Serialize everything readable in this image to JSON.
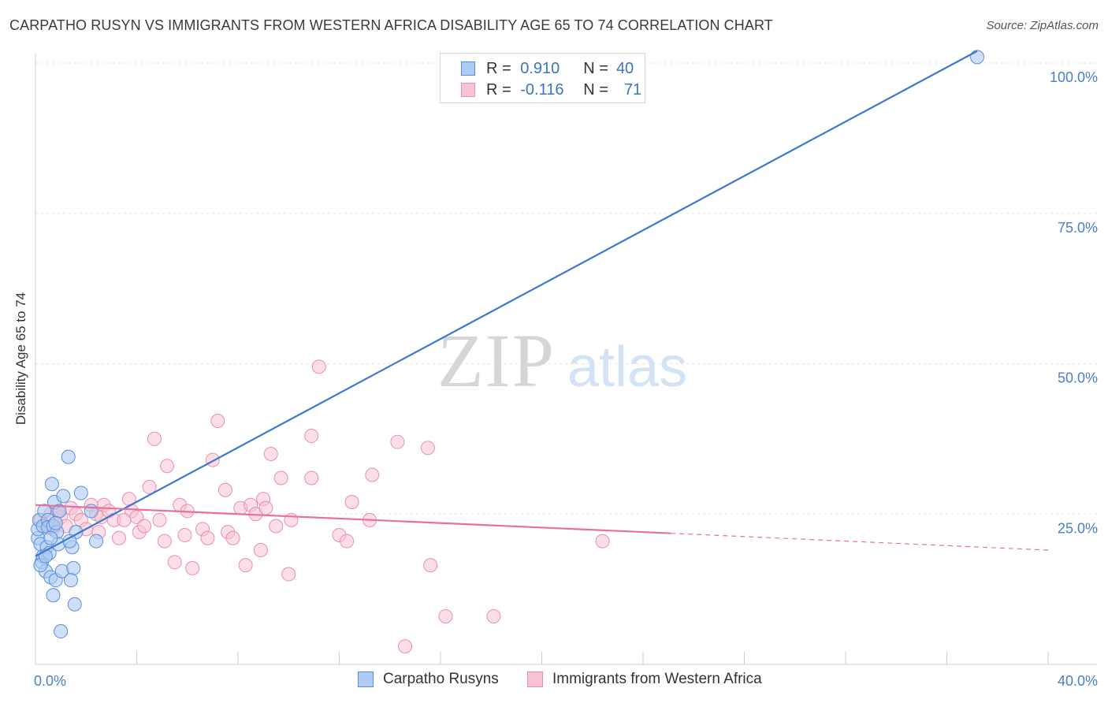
{
  "title": "CARPATHO RUSYN VS IMMIGRANTS FROM WESTERN AFRICA DISABILITY AGE 65 TO 74 CORRELATION CHART",
  "source": "Source: ZipAtlas.com",
  "watermark": {
    "zip": "ZIP",
    "atlas": "atlas"
  },
  "legend": {
    "row1": {
      "r_label": "R =",
      "r_value": "0.910",
      "n_label": "N =",
      "n_value": "40"
    },
    "row2": {
      "r_label": "R =",
      "r_value": "-0.116",
      "n_label": "N =",
      "n_value": "71"
    }
  },
  "colors": {
    "blue_fill": "#aecbf2",
    "blue_stroke": "#5b8ed8",
    "blue_line": "#3b78d0",
    "pink_fill": "#f7c3d3",
    "pink_stroke": "#e890ac",
    "pink_line": "#e8709a",
    "axis_text": "#4a7ec8",
    "grid": "#e2e2e2"
  },
  "chart_data": {
    "type": "scatter",
    "title": "CARPATHO RUSYN VS IMMIGRANTS FROM WESTERN AFRICA DISABILITY AGE 65 TO 74 CORRELATION CHART",
    "xlabel": "",
    "ylabel": "Disability Age 65 to 74",
    "xlim": [
      0,
      40
    ],
    "ylim": [
      0,
      100
    ],
    "x_tick_labels": [
      "0.0%",
      "40.0%"
    ],
    "y_tick_labels": [
      "25.0%",
      "50.0%",
      "75.0%",
      "100.0%"
    ],
    "y_ticks": [
      25,
      50,
      75,
      100
    ],
    "grid": true,
    "legend_placement": "top-center",
    "series": [
      {
        "name": "Carpatho Rusyns",
        "color": "#aecbf2",
        "R": 0.91,
        "N": 40,
        "trend": {
          "x": [
            0.0,
            37.2
          ],
          "y": [
            18.0,
            102.0
          ]
        },
        "points": [
          [
            0.1,
            21.0
          ],
          [
            0.1,
            22.5
          ],
          [
            0.15,
            24.0
          ],
          [
            0.2,
            20.0
          ],
          [
            0.25,
            17.0
          ],
          [
            0.3,
            18.0
          ],
          [
            0.3,
            23.0
          ],
          [
            0.35,
            25.5
          ],
          [
            0.4,
            15.5
          ],
          [
            0.45,
            19.5
          ],
          [
            0.5,
            24.0
          ],
          [
            0.5,
            22.8
          ],
          [
            0.55,
            18.5
          ],
          [
            0.6,
            14.5
          ],
          [
            0.65,
            30.0
          ],
          [
            0.7,
            11.5
          ],
          [
            0.7,
            23.0
          ],
          [
            0.75,
            27.0
          ],
          [
            0.8,
            14.0
          ],
          [
            0.85,
            22.0
          ],
          [
            0.9,
            20.0
          ],
          [
            0.95,
            25.5
          ],
          [
            1.0,
            5.5
          ],
          [
            1.05,
            15.5
          ],
          [
            1.1,
            28.0
          ],
          [
            1.3,
            34.5
          ],
          [
            1.45,
            19.5
          ],
          [
            1.5,
            16.0
          ],
          [
            1.55,
            10.0
          ],
          [
            1.6,
            22.0
          ],
          [
            1.8,
            28.5
          ],
          [
            2.2,
            25.5
          ],
          [
            2.4,
            20.5
          ],
          [
            0.2,
            16.5
          ],
          [
            0.6,
            21.0
          ],
          [
            1.35,
            20.5
          ],
          [
            0.4,
            18.0
          ],
          [
            0.8,
            23.5
          ],
          [
            1.4,
            14.0
          ],
          [
            37.2,
            101.0
          ]
        ]
      },
      {
        "name": "Immigrants from Western Africa",
        "color": "#f7c3d3",
        "R": -0.116,
        "N": 71,
        "trend": {
          "x": [
            0.0,
            25.1
          ],
          "y": [
            26.5,
            21.8
          ]
        },
        "trend_dashed": {
          "x": [
            25.1,
            40.0
          ],
          "y": [
            21.8,
            19.0
          ]
        },
        "points": [
          [
            0.2,
            24.0
          ],
          [
            0.4,
            23.0
          ],
          [
            0.6,
            25.0
          ],
          [
            0.7,
            22.5
          ],
          [
            0.8,
            23.5
          ],
          [
            0.9,
            25.5
          ],
          [
            1.0,
            24.5
          ],
          [
            1.2,
            23.0
          ],
          [
            1.4,
            26.0
          ],
          [
            1.6,
            25.0
          ],
          [
            1.8,
            24.0
          ],
          [
            2.0,
            22.5
          ],
          [
            2.2,
            26.5
          ],
          [
            2.4,
            25.0
          ],
          [
            2.6,
            24.5
          ],
          [
            2.7,
            26.5
          ],
          [
            2.9,
            25.5
          ],
          [
            3.1,
            24.0
          ],
          [
            3.3,
            21.0
          ],
          [
            3.7,
            27.5
          ],
          [
            3.8,
            25.5
          ],
          [
            4.0,
            24.5
          ],
          [
            4.1,
            22.0
          ],
          [
            4.3,
            23.0
          ],
          [
            4.5,
            29.5
          ],
          [
            4.7,
            37.5
          ],
          [
            4.9,
            24.0
          ],
          [
            5.1,
            20.5
          ],
          [
            5.2,
            33.0
          ],
          [
            5.5,
            17.0
          ],
          [
            5.7,
            26.5
          ],
          [
            5.9,
            21.5
          ],
          [
            6.0,
            25.5
          ],
          [
            6.2,
            16.0
          ],
          [
            6.6,
            22.5
          ],
          [
            6.8,
            21.0
          ],
          [
            7.0,
            34.0
          ],
          [
            7.2,
            40.5
          ],
          [
            7.5,
            29.0
          ],
          [
            7.6,
            22.0
          ],
          [
            7.8,
            21.0
          ],
          [
            8.1,
            26.0
          ],
          [
            8.3,
            16.5
          ],
          [
            8.5,
            26.5
          ],
          [
            8.7,
            25.0
          ],
          [
            8.9,
            19.0
          ],
          [
            9.0,
            27.5
          ],
          [
            9.1,
            26.0
          ],
          [
            9.3,
            35.0
          ],
          [
            9.5,
            23.0
          ],
          [
            9.7,
            31.0
          ],
          [
            10.0,
            15.0
          ],
          [
            10.1,
            24.0
          ],
          [
            10.9,
            38.0
          ],
          [
            10.9,
            31.0
          ],
          [
            11.2,
            49.5
          ],
          [
            12.0,
            21.5
          ],
          [
            12.3,
            20.5
          ],
          [
            12.5,
            27.0
          ],
          [
            13.2,
            24.0
          ],
          [
            13.3,
            31.5
          ],
          [
            14.3,
            37.0
          ],
          [
            14.6,
            3.0
          ],
          [
            15.5,
            36.0
          ],
          [
            15.6,
            16.5
          ],
          [
            16.2,
            8.0
          ],
          [
            18.1,
            8.0
          ],
          [
            22.4,
            20.5
          ],
          [
            2.5,
            22.0
          ],
          [
            0.9,
            25.5
          ],
          [
            3.5,
            24.0
          ]
        ]
      }
    ]
  }
}
